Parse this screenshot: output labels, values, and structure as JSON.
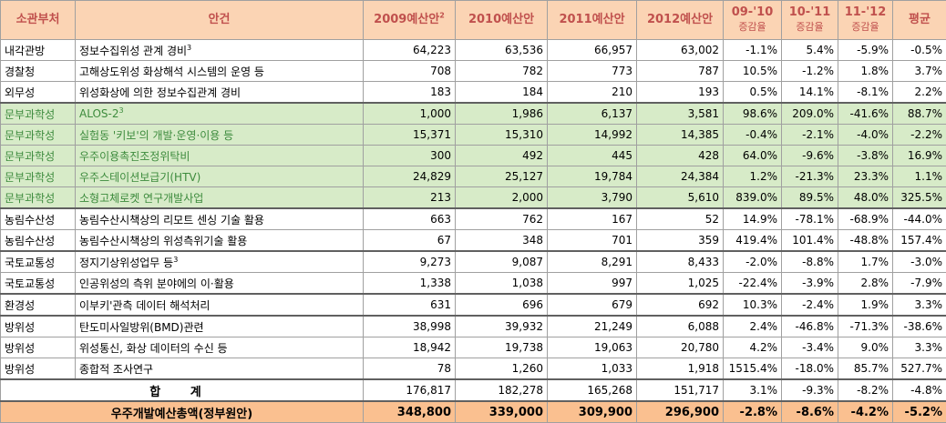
{
  "headers": {
    "ministry": "소관부처",
    "item": "안건",
    "y2009": "2009예산안",
    "y2009_sup": "2",
    "y2010": "2010예산안",
    "y2011": "2011예산안",
    "y2012": "2012예산안",
    "c0910": "09-'10",
    "c1011": "10-'11",
    "c1112": "11-'12",
    "change_sub": "증감율",
    "avg": "평균"
  },
  "rows": [
    {
      "ministry": "내각관방",
      "item": "정보수집위성 관계 경비",
      "sup": "3",
      "v2009": "64,223",
      "v2010": "63,536",
      "v2011": "66,957",
      "v2012": "63,002",
      "c0910": "-1.1%",
      "c1011": "5.4%",
      "c1112": "-5.9%",
      "avg": "-0.5%",
      "green": false
    },
    {
      "ministry": "경찰청",
      "item": "고해상도위성 화상해석 시스템의 운영 등",
      "sup": "",
      "v2009": "708",
      "v2010": "782",
      "v2011": "773",
      "v2012": "787",
      "c0910": "10.5%",
      "c1011": "-1.2%",
      "c1112": "1.8%",
      "avg": "3.7%",
      "green": false
    },
    {
      "ministry": "외무성",
      "item": "위성화상에 의한 정보수집관계 경비",
      "sup": "",
      "v2009": "183",
      "v2010": "184",
      "v2011": "210",
      "v2012": "193",
      "c0910": "0.5%",
      "c1011": "14.1%",
      "c1112": "-8.1%",
      "avg": "2.2%",
      "green": false
    },
    {
      "ministry": "문부과학성",
      "item": "ALOS-2",
      "sup": "3",
      "v2009": "1,000",
      "v2010": "1,986",
      "v2011": "6,137",
      "v2012": "3,581",
      "c0910": "98.6%",
      "c1011": "209.0%",
      "c1112": "-41.6%",
      "avg": "88.7%",
      "green": true
    },
    {
      "ministry": "문부과학성",
      "item": "실험동 '키보'의 개발·운영·이용 등",
      "sup": "",
      "v2009": "15,371",
      "v2010": "15,310",
      "v2011": "14,992",
      "v2012": "14,385",
      "c0910": "-0.4%",
      "c1011": "-2.1%",
      "c1112": "-4.0%",
      "avg": "-2.2%",
      "green": true
    },
    {
      "ministry": "문부과학성",
      "item": "우주이용촉진조정위탁비",
      "sup": "",
      "v2009": "300",
      "v2010": "492",
      "v2011": "445",
      "v2012": "428",
      "c0910": "64.0%",
      "c1011": "-9.6%",
      "c1112": "-3.8%",
      "avg": "16.9%",
      "green": true
    },
    {
      "ministry": "문부과학성",
      "item": "우주스테이션보급기(HTV)",
      "sup": "",
      "v2009": "24,829",
      "v2010": "25,127",
      "v2011": "19,784",
      "v2012": "24,384",
      "c0910": "1.2%",
      "c1011": "-21.3%",
      "c1112": "23.3%",
      "avg": "1.1%",
      "green": true
    },
    {
      "ministry": "문부과학성",
      "item": "소형고체로켓 연구개발사업",
      "sup": "",
      "v2009": "213",
      "v2010": "2,000",
      "v2011": "3,790",
      "v2012": "5,610",
      "c0910": "839.0%",
      "c1011": "89.5%",
      "c1112": "48.0%",
      "avg": "325.5%",
      "green": true
    },
    {
      "ministry": "농림수산성",
      "item": "농림수산시책상의 리모트 센싱 기술 활용",
      "sup": "",
      "v2009": "663",
      "v2010": "762",
      "v2011": "167",
      "v2012": "52",
      "c0910": "14.9%",
      "c1011": "-78.1%",
      "c1112": "-68.9%",
      "avg": "-44.0%",
      "green": false
    },
    {
      "ministry": "농림수산성",
      "item": "농림수산시책상의 위성측위기술 활용",
      "sup": "",
      "v2009": "67",
      "v2010": "348",
      "v2011": "701",
      "v2012": "359",
      "c0910": "419.4%",
      "c1011": "101.4%",
      "c1112": "-48.8%",
      "avg": "157.4%",
      "green": false
    },
    {
      "ministry": "국토교통성",
      "item": "정지기상위성업무 등",
      "sup": "3",
      "v2009": "9,273",
      "v2010": "9,087",
      "v2011": "8,291",
      "v2012": "8,433",
      "c0910": "-2.0%",
      "c1011": "-8.8%",
      "c1112": "1.7%",
      "avg": "-3.0%",
      "green": false
    },
    {
      "ministry": "국토교통성",
      "item": "인공위성의 측위 분야에의 이·활용",
      "sup": "",
      "v2009": "1,338",
      "v2010": "1,038",
      "v2011": "997",
      "v2012": "1,025",
      "c0910": "-22.4%",
      "c1011": "-3.9%",
      "c1112": "2.8%",
      "avg": "-7.9%",
      "green": false
    },
    {
      "ministry": "환경성",
      "item": "이부키'관측 데이터 해석처리",
      "sup": "",
      "v2009": "631",
      "v2010": "696",
      "v2011": "679",
      "v2012": "692",
      "c0910": "10.3%",
      "c1011": "-2.4%",
      "c1112": "1.9%",
      "avg": "3.3%",
      "green": false
    },
    {
      "ministry": "방위성",
      "item": "탄도미사일방위(BMD)관련",
      "sup": "",
      "v2009": "38,998",
      "v2010": "39,932",
      "v2011": "21,249",
      "v2012": "6,088",
      "c0910": "2.4%",
      "c1011": "-46.8%",
      "c1112": "-71.3%",
      "avg": "-38.6%",
      "green": false
    },
    {
      "ministry": "방위성",
      "item": "위성통신, 화상 데이터의 수신 등",
      "sup": "",
      "v2009": "18,942",
      "v2010": "19,738",
      "v2011": "19,063",
      "v2012": "20,780",
      "c0910": "4.2%",
      "c1011": "-3.4%",
      "c1112": "9.0%",
      "avg": "3.3%",
      "green": false
    },
    {
      "ministry": "방위성",
      "item": "종합적 조사연구",
      "sup": "",
      "v2009": "78",
      "v2010": "1,260",
      "v2011": "1,033",
      "v2012": "1,918",
      "c0910": "1515.4%",
      "c1011": "-18.0%",
      "c1112": "85.7%",
      "avg": "527.7%",
      "green": false
    }
  ],
  "total": {
    "label": "합 계",
    "v2009": "176,817",
    "v2010": "182,278",
    "v2011": "165,268",
    "v2012": "151,717",
    "c0910": "3.1%",
    "c1011": "-9.3%",
    "c1112": "-8.2%",
    "avg": "-4.8%"
  },
  "grand": {
    "label": "우주개발예산총액(정부원안)",
    "v2009": "348,800",
    "v2010": "339,000",
    "v2011": "309,900",
    "v2012": "296,900",
    "c0910": "-2.8%",
    "c1011": "-8.6%",
    "c1112": "-4.2%",
    "avg": "-5.2%"
  },
  "colors": {
    "header_bg": "#fbd4b4",
    "header_text": "#c0504d",
    "green_bg": "#d7ebc8",
    "green_text": "#3d8b3d",
    "grand_bg": "#fac090"
  }
}
